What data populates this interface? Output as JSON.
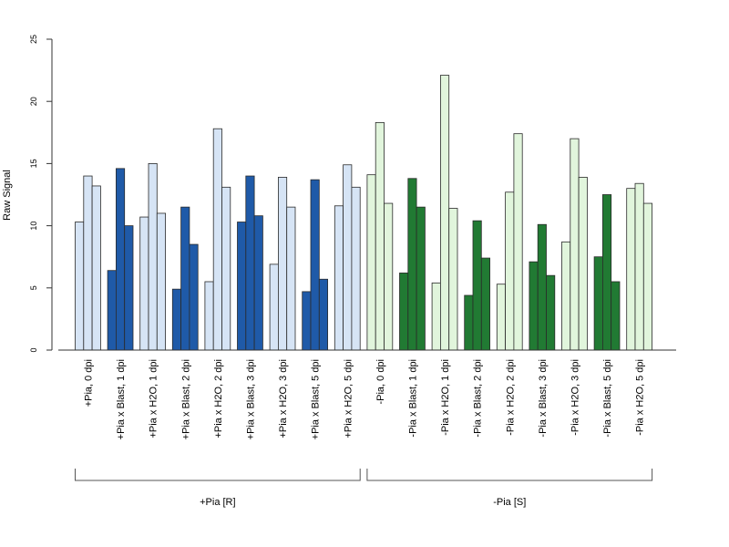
{
  "chart_data": {
    "type": "bar",
    "ylabel": "Raw Signal",
    "ylim": [
      0,
      25
    ],
    "yticks": [
      "0",
      "5",
      "10",
      "15",
      "20",
      "25"
    ],
    "bar_outline_color": "#2a2a2a",
    "colors": {
      "blue_light": "#d6e4f5",
      "blue_dark": "#1f5aa8",
      "green_light": "#e1f5dc",
      "green_dark": "#217a33"
    },
    "categories": [
      {
        "label": "+Pia, 0 dpi",
        "values": [
          10.3,
          14.0,
          13.2
        ],
        "color": "blue_light"
      },
      {
        "label": "+Pia x Blast, 1 dpi",
        "values": [
          6.4,
          14.6,
          10.0
        ],
        "color": "blue_dark"
      },
      {
        "label": "+Pia x H2O, 1 dpi",
        "values": [
          10.7,
          15.0,
          11.0
        ],
        "color": "blue_light"
      },
      {
        "label": "+Pia x Blast, 2 dpi",
        "values": [
          4.9,
          11.5,
          8.5
        ],
        "color": "blue_dark"
      },
      {
        "label": "+Pia x H2O, 2 dpi",
        "values": [
          5.5,
          17.8,
          13.1
        ],
        "color": "blue_light"
      },
      {
        "label": "+Pia x Blast, 3 dpi",
        "values": [
          10.3,
          14.0,
          10.8
        ],
        "color": "blue_dark"
      },
      {
        "label": "+Pia x H2O, 3 dpi",
        "values": [
          6.9,
          13.9,
          11.5
        ],
        "color": "blue_light"
      },
      {
        "label": "+Pia x Blast, 5 dpi",
        "values": [
          4.7,
          13.7,
          5.7
        ],
        "color": "blue_dark"
      },
      {
        "label": "+Pia x H2O, 5 dpi",
        "values": [
          11.6,
          14.9,
          13.1
        ],
        "color": "blue_light"
      },
      {
        "label": "-Pia, 0 dpi",
        "values": [
          14.1,
          18.3,
          11.8
        ],
        "color": "green_light"
      },
      {
        "label": "-Pia x Blast, 1 dpi",
        "values": [
          6.2,
          13.8,
          11.5
        ],
        "color": "green_dark"
      },
      {
        "label": "-Pia x H2O, 1 dpi",
        "values": [
          5.4,
          22.1,
          11.4
        ],
        "color": "green_light"
      },
      {
        "label": "-Pia x Blast, 2 dpi",
        "values": [
          4.4,
          10.4,
          7.4
        ],
        "color": "green_dark"
      },
      {
        "label": "-Pia x H2O, 2 dpi",
        "values": [
          5.3,
          12.7,
          17.4
        ],
        "color": "green_light"
      },
      {
        "label": "-Pia x Blast, 3 dpi",
        "values": [
          7.1,
          10.1,
          6.0
        ],
        "color": "green_dark"
      },
      {
        "label": "-Pia x H2O, 3 dpi",
        "values": [
          8.7,
          17.0,
          13.9
        ],
        "color": "green_light"
      },
      {
        "label": "-Pia x Blast, 5 dpi",
        "values": [
          7.5,
          12.5,
          5.5
        ],
        "color": "green_dark"
      },
      {
        "label": "-Pia x H2O, 5 dpi",
        "values": [
          13.0,
          13.4,
          11.8
        ],
        "color": "green_light"
      }
    ],
    "groups": [
      {
        "label": "+Pia [R]",
        "first_category": 0,
        "last_category": 8
      },
      {
        "label": "-Pia [S]",
        "first_category": 9,
        "last_category": 17
      }
    ]
  }
}
